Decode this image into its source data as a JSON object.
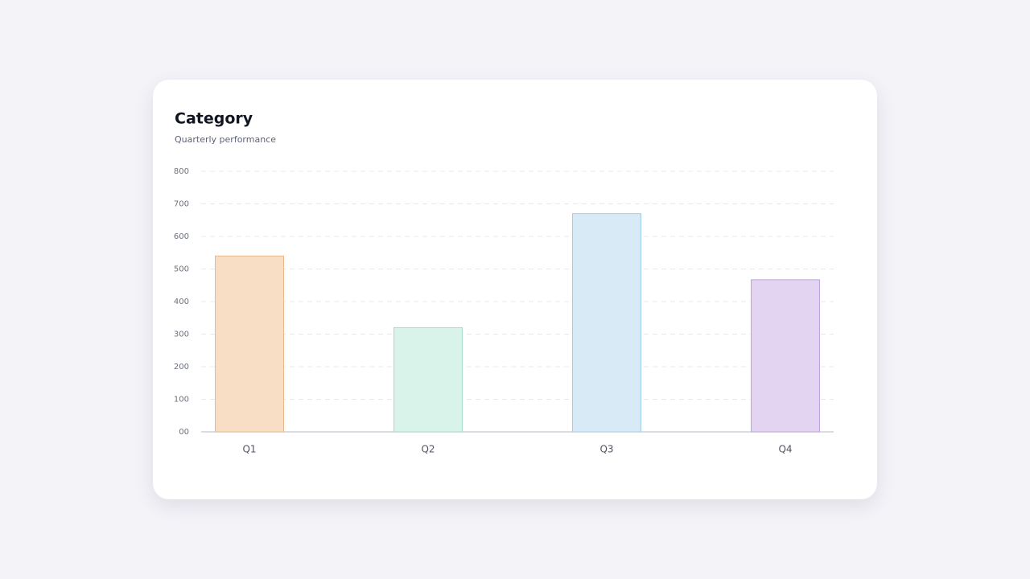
{
  "chart_data": {
    "type": "bar",
    "title": "Category",
    "subtitle": "Quarterly performance",
    "categories": [
      "Q1",
      "Q2",
      "Q3",
      "Q4"
    ],
    "values": [
      540,
      320,
      670,
      467
    ],
    "colors": [
      "#f8dec4",
      "#d9f3ea",
      "#d7eaf6",
      "#e3d4f2"
    ],
    "border_colors": [
      "#e8b98e",
      "#a6dccb",
      "#a3cde6",
      "#bca5dc"
    ],
    "ylim": [
      0,
      800
    ],
    "yticks": [
      {
        "value": 0,
        "label": "00"
      },
      100,
      200,
      300,
      400,
      500,
      600,
      700,
      800
    ],
    "grid": true
  }
}
